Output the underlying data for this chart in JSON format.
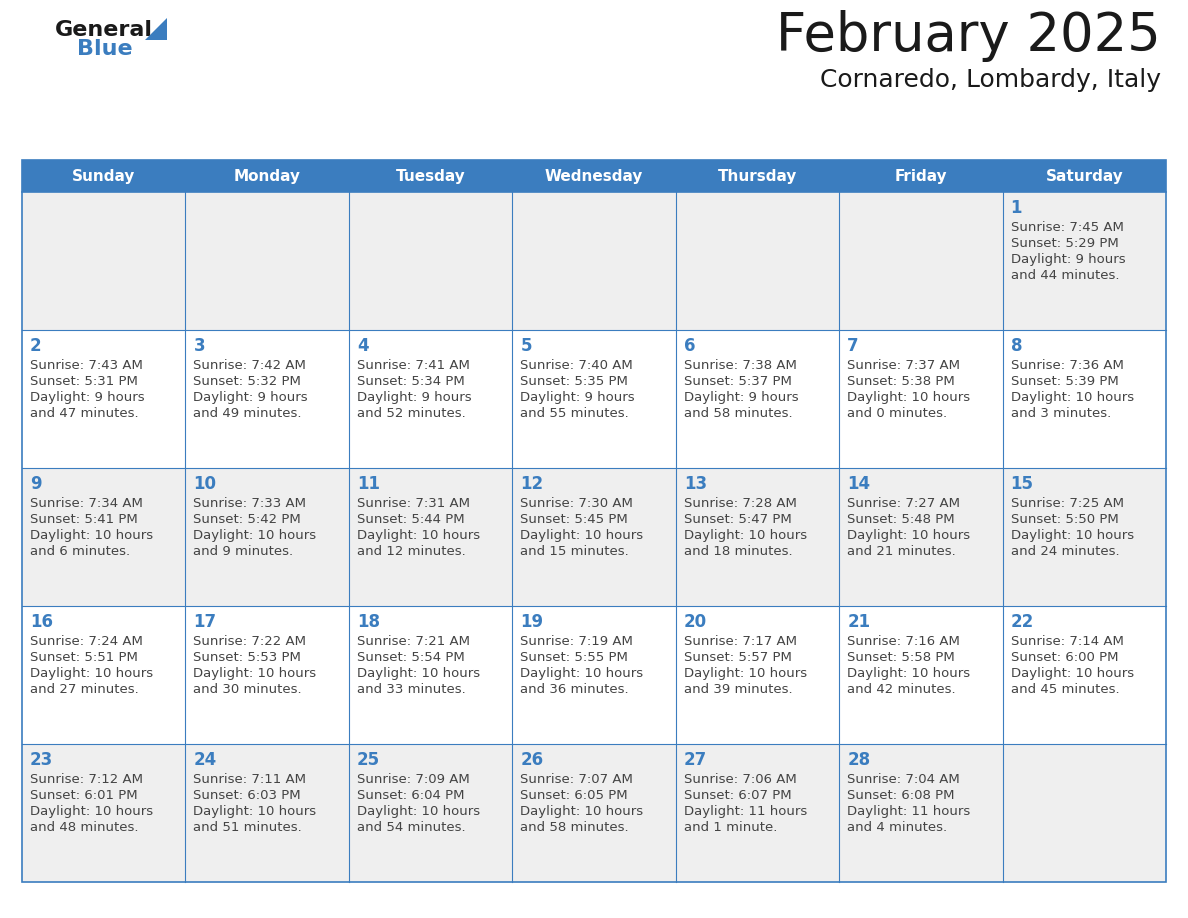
{
  "title": "February 2025",
  "subtitle": "Cornaredo, Lombardy, Italy",
  "header_bg": "#3b7dbf",
  "header_text": "#ffffff",
  "day_names": [
    "Sunday",
    "Monday",
    "Tuesday",
    "Wednesday",
    "Thursday",
    "Friday",
    "Saturday"
  ],
  "odd_row_bg": "#efefef",
  "even_row_bg": "#ffffff",
  "border_color": "#3b7dbf",
  "day_number_color": "#3b7dbf",
  "text_color": "#444444",
  "logo_general_color": "#1a1a1a",
  "logo_blue_color": "#3b7dbf",
  "title_color": "#1a1a1a",
  "calendar": [
    [
      null,
      null,
      null,
      null,
      null,
      null,
      {
        "day": "1",
        "sunrise": "7:45 AM",
        "sunset": "5:29 PM",
        "daylight": "9 hours\nand 44 minutes."
      }
    ],
    [
      {
        "day": "2",
        "sunrise": "7:43 AM",
        "sunset": "5:31 PM",
        "daylight": "9 hours\nand 47 minutes."
      },
      {
        "day": "3",
        "sunrise": "7:42 AM",
        "sunset": "5:32 PM",
        "daylight": "9 hours\nand 49 minutes."
      },
      {
        "day": "4",
        "sunrise": "7:41 AM",
        "sunset": "5:34 PM",
        "daylight": "9 hours\nand 52 minutes."
      },
      {
        "day": "5",
        "sunrise": "7:40 AM",
        "sunset": "5:35 PM",
        "daylight": "9 hours\nand 55 minutes."
      },
      {
        "day": "6",
        "sunrise": "7:38 AM",
        "sunset": "5:37 PM",
        "daylight": "9 hours\nand 58 minutes."
      },
      {
        "day": "7",
        "sunrise": "7:37 AM",
        "sunset": "5:38 PM",
        "daylight": "10 hours\nand 0 minutes."
      },
      {
        "day": "8",
        "sunrise": "7:36 AM",
        "sunset": "5:39 PM",
        "daylight": "10 hours\nand 3 minutes."
      }
    ],
    [
      {
        "day": "9",
        "sunrise": "7:34 AM",
        "sunset": "5:41 PM",
        "daylight": "10 hours\nand 6 minutes."
      },
      {
        "day": "10",
        "sunrise": "7:33 AM",
        "sunset": "5:42 PM",
        "daylight": "10 hours\nand 9 minutes."
      },
      {
        "day": "11",
        "sunrise": "7:31 AM",
        "sunset": "5:44 PM",
        "daylight": "10 hours\nand 12 minutes."
      },
      {
        "day": "12",
        "sunrise": "7:30 AM",
        "sunset": "5:45 PM",
        "daylight": "10 hours\nand 15 minutes."
      },
      {
        "day": "13",
        "sunrise": "7:28 AM",
        "sunset": "5:47 PM",
        "daylight": "10 hours\nand 18 minutes."
      },
      {
        "day": "14",
        "sunrise": "7:27 AM",
        "sunset": "5:48 PM",
        "daylight": "10 hours\nand 21 minutes."
      },
      {
        "day": "15",
        "sunrise": "7:25 AM",
        "sunset": "5:50 PM",
        "daylight": "10 hours\nand 24 minutes."
      }
    ],
    [
      {
        "day": "16",
        "sunrise": "7:24 AM",
        "sunset": "5:51 PM",
        "daylight": "10 hours\nand 27 minutes."
      },
      {
        "day": "17",
        "sunrise": "7:22 AM",
        "sunset": "5:53 PM",
        "daylight": "10 hours\nand 30 minutes."
      },
      {
        "day": "18",
        "sunrise": "7:21 AM",
        "sunset": "5:54 PM",
        "daylight": "10 hours\nand 33 minutes."
      },
      {
        "day": "19",
        "sunrise": "7:19 AM",
        "sunset": "5:55 PM",
        "daylight": "10 hours\nand 36 minutes."
      },
      {
        "day": "20",
        "sunrise": "7:17 AM",
        "sunset": "5:57 PM",
        "daylight": "10 hours\nand 39 minutes."
      },
      {
        "day": "21",
        "sunrise": "7:16 AM",
        "sunset": "5:58 PM",
        "daylight": "10 hours\nand 42 minutes."
      },
      {
        "day": "22",
        "sunrise": "7:14 AM",
        "sunset": "6:00 PM",
        "daylight": "10 hours\nand 45 minutes."
      }
    ],
    [
      {
        "day": "23",
        "sunrise": "7:12 AM",
        "sunset": "6:01 PM",
        "daylight": "10 hours\nand 48 minutes."
      },
      {
        "day": "24",
        "sunrise": "7:11 AM",
        "sunset": "6:03 PM",
        "daylight": "10 hours\nand 51 minutes."
      },
      {
        "day": "25",
        "sunrise": "7:09 AM",
        "sunset": "6:04 PM",
        "daylight": "10 hours\nand 54 minutes."
      },
      {
        "day": "26",
        "sunrise": "7:07 AM",
        "sunset": "6:05 PM",
        "daylight": "10 hours\nand 58 minutes."
      },
      {
        "day": "27",
        "sunrise": "7:06 AM",
        "sunset": "6:07 PM",
        "daylight": "11 hours\nand 1 minute."
      },
      {
        "day": "28",
        "sunrise": "7:04 AM",
        "sunset": "6:08 PM",
        "daylight": "11 hours\nand 4 minutes."
      },
      null
    ]
  ]
}
